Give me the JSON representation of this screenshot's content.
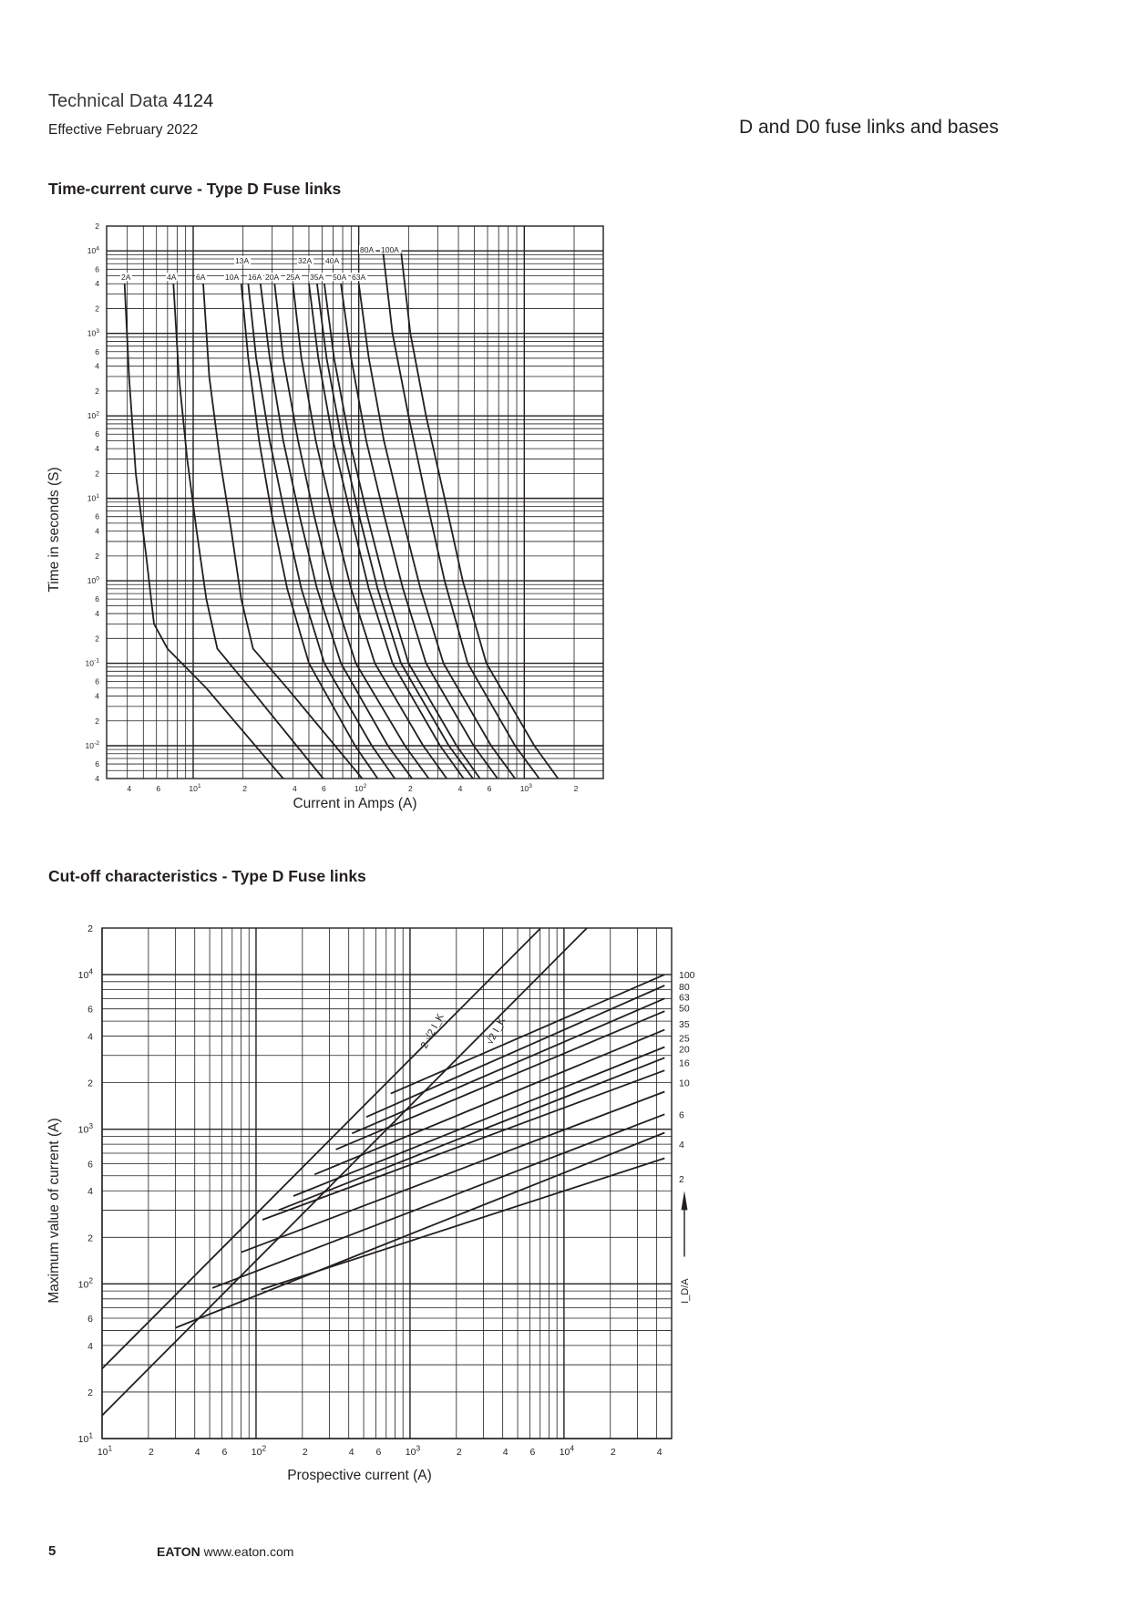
{
  "header": {
    "title_prefix": "Technical Data",
    "title_number": "4124",
    "subtitle": "Effective February 2022",
    "right_title": "D and D0 fuse links and bases"
  },
  "sections": {
    "time_current_title": "Time-current curve - Type D Fuse links",
    "cutoff_title": "Cut-off characteristics - Type D Fuse links"
  },
  "footer": {
    "page_number": "5",
    "brand": "EATON",
    "url": "www.eaton.com"
  },
  "chart_data": [
    {
      "type": "line",
      "scale": "log-log",
      "xlabel": "Current in Amps (A)",
      "ylabel": "Time in seconds (S)",
      "xlim": [
        3,
        3000
      ],
      "ylim": [
        0.004,
        20000
      ],
      "grid": true,
      "x_ticks": [
        {
          "v": 4,
          "t": "4"
        },
        {
          "v": 6,
          "t": "6"
        },
        {
          "v": 10,
          "t": "10",
          "e": "1"
        },
        {
          "v": 20,
          "t": "2"
        },
        {
          "v": 40,
          "t": "4"
        },
        {
          "v": 60,
          "t": "6"
        },
        {
          "v": 100,
          "t": "10",
          "e": "2"
        },
        {
          "v": 200,
          "t": "2"
        },
        {
          "v": 400,
          "t": "4"
        },
        {
          "v": 600,
          "t": "6"
        },
        {
          "v": 1000,
          "t": "10",
          "e": "3"
        },
        {
          "v": 2000,
          "t": "2"
        }
      ],
      "y_ticks": [
        {
          "v": 20000,
          "t": "2"
        },
        {
          "v": 10000,
          "t": "10",
          "e": "4"
        },
        {
          "v": 6000,
          "t": "6"
        },
        {
          "v": 4000,
          "t": "4"
        },
        {
          "v": 2000,
          "t": "2"
        },
        {
          "v": 1000,
          "t": "10",
          "e": "3"
        },
        {
          "v": 600,
          "t": "6"
        },
        {
          "v": 400,
          "t": "4"
        },
        {
          "v": 200,
          "t": "2"
        },
        {
          "v": 100,
          "t": "10",
          "e": "2"
        },
        {
          "v": 60,
          "t": "6"
        },
        {
          "v": 40,
          "t": "4"
        },
        {
          "v": 20,
          "t": "2"
        },
        {
          "v": 10,
          "t": "10",
          "e": "1"
        },
        {
          "v": 6,
          "t": "6"
        },
        {
          "v": 4,
          "t": "4"
        },
        {
          "v": 2,
          "t": "2"
        },
        {
          "v": 1,
          "t": "10",
          "e": "0"
        },
        {
          "v": 0.6,
          "t": "6"
        },
        {
          "v": 0.4,
          "t": "4"
        },
        {
          "v": 0.2,
          "t": "2"
        },
        {
          "v": 0.1,
          "t": "10",
          "e": "-1"
        },
        {
          "v": 0.06,
          "t": "6"
        },
        {
          "v": 0.04,
          "t": "4"
        },
        {
          "v": 0.02,
          "t": "2"
        },
        {
          "v": 0.01,
          "t": "10",
          "e": "-2"
        },
        {
          "v": 0.006,
          "t": "6"
        },
        {
          "v": 0.004,
          "t": "4"
        }
      ],
      "series": [
        {
          "name": "2A",
          "points": [
            [
              3.85,
              4000
            ],
            [
              4.1,
              300
            ],
            [
              4.5,
              20
            ],
            [
              5.2,
              2
            ],
            [
              5.8,
              0.3
            ],
            [
              7,
              0.15
            ],
            [
              12,
              0.05
            ],
            [
              35,
              0.004
            ]
          ]
        },
        {
          "name": "4A",
          "points": [
            [
              7.6,
              4000
            ],
            [
              8.2,
              300
            ],
            [
              9.2,
              30
            ],
            [
              10.5,
              4
            ],
            [
              12,
              0.6
            ],
            [
              14,
              0.15
            ],
            [
              22,
              0.05
            ],
            [
              61,
              0.004
            ]
          ]
        },
        {
          "name": "6A",
          "points": [
            [
              11.5,
              4000
            ],
            [
              12.5,
              300
            ],
            [
              14.5,
              30
            ],
            [
              17,
              4
            ],
            [
              19.5,
              0.6
            ],
            [
              23,
              0.15
            ],
            [
              37,
              0.05
            ],
            [
              105,
              0.004
            ]
          ]
        },
        {
          "name": "10A",
          "points": [
            [
              19.5,
              4000
            ],
            [
              21.5,
              500
            ],
            [
              25,
              50
            ],
            [
              30,
              6
            ],
            [
              37,
              0.8
            ],
            [
              50,
              0.1
            ],
            [
              95,
              0.01
            ],
            [
              130,
              0.004
            ]
          ]
        },
        {
          "name": "13A",
          "points": [
            [
              21.5,
              4000
            ],
            [
              24,
              500
            ],
            [
              29,
              50
            ],
            [
              36,
              6
            ],
            [
              45,
              0.8
            ],
            [
              62,
              0.1
            ],
            [
              120,
              0.01
            ],
            [
              165,
              0.004
            ]
          ]
        },
        {
          "name": "16A",
          "points": [
            [
              25.5,
              4000
            ],
            [
              29,
              500
            ],
            [
              35,
              50
            ],
            [
              44,
              6
            ],
            [
              56,
              0.8
            ],
            [
              78,
              0.1
            ],
            [
              150,
              0.01
            ],
            [
              210,
              0.004
            ]
          ]
        },
        {
          "name": "20A",
          "points": [
            [
              31,
              4000
            ],
            [
              35,
              500
            ],
            [
              43,
              50
            ],
            [
              54,
              6
            ],
            [
              69,
              0.8
            ],
            [
              96,
              0.1
            ],
            [
              190,
              0.01
            ],
            [
              265,
              0.004
            ]
          ]
        },
        {
          "name": "25A",
          "points": [
            [
              40,
              4000
            ],
            [
              45,
              500
            ],
            [
              55,
              50
            ],
            [
              70,
              6
            ],
            [
              90,
              0.8
            ],
            [
              125,
              0.1
            ],
            [
              245,
              0.01
            ],
            [
              340,
              0.004
            ]
          ]
        },
        {
          "name": "32A",
          "points": [
            [
              50,
              4000
            ],
            [
              57,
              500
            ],
            [
              70,
              50
            ],
            [
              90,
              6
            ],
            [
              115,
              0.8
            ],
            [
              160,
              0.1
            ],
            [
              310,
              0.01
            ],
            [
              430,
              0.004
            ]
          ]
        },
        {
          "name": "35A",
          "points": [
            [
              56,
              4000
            ],
            [
              64,
              500
            ],
            [
              79,
              50
            ],
            [
              101,
              6
            ],
            [
              130,
              0.8
            ],
            [
              180,
              0.1
            ],
            [
              350,
              0.01
            ],
            [
              490,
              0.004
            ]
          ]
        },
        {
          "name": "40A",
          "points": [
            [
              62,
              4000
            ],
            [
              71,
              500
            ],
            [
              88,
              50
            ],
            [
              113,
              6
            ],
            [
              146,
              0.8
            ],
            [
              200,
              0.1
            ],
            [
              390,
              0.01
            ],
            [
              540,
              0.004
            ]
          ]
        },
        {
          "name": "50A",
          "points": [
            [
              78,
              4000
            ],
            [
              90,
              500
            ],
            [
              111,
              50
            ],
            [
              143,
              6
            ],
            [
              185,
              0.8
            ],
            [
              255,
              0.1
            ],
            [
              495,
              0.01
            ],
            [
              690,
              0.004
            ]
          ]
        },
        {
          "name": "63A",
          "points": [
            [
              100,
              4000
            ],
            [
              115,
              500
            ],
            [
              142,
              50
            ],
            [
              183,
              6
            ],
            [
              236,
              0.8
            ],
            [
              325,
              0.1
            ],
            [
              630,
              0.01
            ],
            [
              880,
              0.004
            ]
          ]
        },
        {
          "name": "80A",
          "points": [
            [
              140,
              10000
            ],
            [
              160,
              1000
            ],
            [
              200,
              100
            ],
            [
              255,
              10
            ],
            [
              330,
              1
            ],
            [
              455,
              0.1
            ],
            [
              880,
              0.01
            ],
            [
              1230,
              0.004
            ]
          ]
        },
        {
          "name": "100A",
          "points": [
            [
              180,
              10000
            ],
            [
              205,
              1000
            ],
            [
              255,
              100
            ],
            [
              330,
              10
            ],
            [
              425,
              1
            ],
            [
              590,
              0.1
            ],
            [
              1150,
              0.01
            ],
            [
              1600,
              0.004
            ]
          ]
        }
      ],
      "labels": [
        "2A",
        "4A",
        "6A",
        "10A",
        "13A",
        "16A",
        "20A",
        "25A",
        "32A",
        "35A",
        "40A",
        "50A",
        "63A",
        "80A",
        "100A"
      ]
    },
    {
      "type": "line",
      "scale": "log-log",
      "xlabel": "Prospective current (A)",
      "ylabel": "Maximum value of current (A)",
      "xlim": [
        10,
        50000
      ],
      "ylim": [
        10,
        20000
      ],
      "grid": true,
      "x_ticks": [
        {
          "v": 10,
          "t": "10",
          "e": "1"
        },
        {
          "v": 20,
          "t": "2"
        },
        {
          "v": 40,
          "t": "4"
        },
        {
          "v": 60,
          "t": "6"
        },
        {
          "v": 100,
          "t": "10",
          "e": "2"
        },
        {
          "v": 200,
          "t": "2"
        },
        {
          "v": 400,
          "t": "4"
        },
        {
          "v": 600,
          "t": "6"
        },
        {
          "v": 1000,
          "t": "10",
          "e": "3"
        },
        {
          "v": 2000,
          "t": "2"
        },
        {
          "v": 4000,
          "t": "4"
        },
        {
          "v": 6000,
          "t": "6"
        },
        {
          "v": 10000,
          "t": "10",
          "e": "4"
        },
        {
          "v": 20000,
          "t": "2"
        },
        {
          "v": 40000,
          "t": "4"
        }
      ],
      "y_ticks": [
        {
          "v": 20000,
          "t": "2"
        },
        {
          "v": 10000,
          "t": "10",
          "e": "4"
        },
        {
          "v": 6000,
          "t": "6"
        },
        {
          "v": 4000,
          "t": "4"
        },
        {
          "v": 2000,
          "t": "2"
        },
        {
          "v": 1000,
          "t": "10",
          "e": "3"
        },
        {
          "v": 600,
          "t": "6"
        },
        {
          "v": 400,
          "t": "4"
        },
        {
          "v": 200,
          "t": "2"
        },
        {
          "v": 100,
          "t": "10",
          "e": "2"
        },
        {
          "v": 60,
          "t": "6"
        },
        {
          "v": 40,
          "t": "4"
        },
        {
          "v": 20,
          "t": "2"
        },
        {
          "v": 10,
          "t": "10",
          "e": "1"
        }
      ],
      "reference_lines": [
        {
          "name": "2·√2 I_K",
          "points": [
            [
              10,
              28.3
            ],
            [
              7000,
              19800
            ]
          ]
        },
        {
          "name": "√2 I_K",
          "points": [
            [
              10,
              14.1
            ],
            [
              14100,
              20000
            ]
          ]
        }
      ],
      "series": [
        {
          "name": "2",
          "points": [
            [
              108,
              92
            ],
            [
              45000,
              650
            ]
          ]
        },
        {
          "name": "4",
          "points": [
            [
              30,
              52
            ],
            [
              45000,
              950
            ]
          ]
        },
        {
          "name": "6",
          "points": [
            [
              52,
              94
            ],
            [
              45000,
              1250
            ]
          ]
        },
        {
          "name": "10",
          "points": [
            [
              80,
              160
            ],
            [
              45000,
              1750
            ]
          ]
        },
        {
          "name": "16",
          "points": [
            [
              110,
              260
            ],
            [
              45000,
              2400
            ]
          ]
        },
        {
          "name": "20",
          "points": [
            [
              140,
              300
            ],
            [
              45000,
              2900
            ]
          ]
        },
        {
          "name": "25",
          "points": [
            [
              175,
              370
            ],
            [
              45000,
              3400
            ]
          ]
        },
        {
          "name": "35",
          "points": [
            [
              240,
              510
            ],
            [
              45000,
              4400
            ]
          ]
        },
        {
          "name": "50",
          "points": [
            [
              330,
              740
            ],
            [
              45000,
              5800
            ]
          ]
        },
        {
          "name": "63",
          "points": [
            [
              420,
              940
            ],
            [
              45000,
              7000
            ]
          ]
        },
        {
          "name": "80",
          "points": [
            [
              520,
              1200
            ],
            [
              45000,
              8500
            ]
          ]
        },
        {
          "name": "100",
          "points": [
            [
              750,
              1700
            ],
            [
              45000,
              10000
            ]
          ]
        }
      ],
      "axis_label_right": "I_D/A",
      "labels": [
        "100",
        "80",
        "63",
        "50",
        "35",
        "25",
        "20",
        "16",
        "10",
        "6",
        "4",
        "2"
      ]
    }
  ]
}
